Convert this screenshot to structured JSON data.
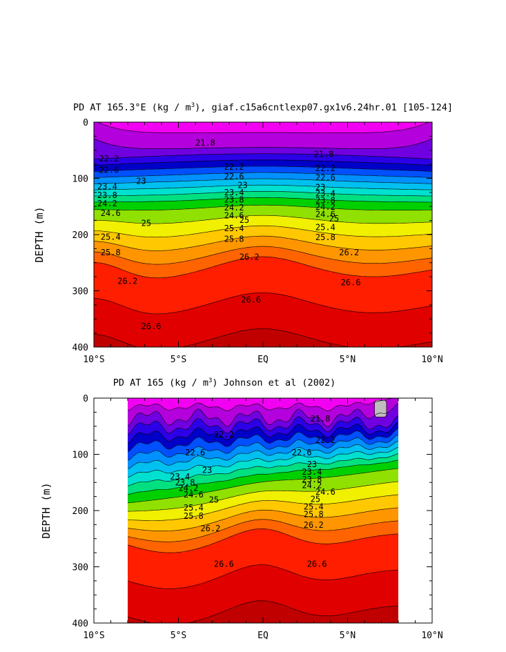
{
  "chart_data": [
    {
      "type": "contour",
      "title": "PD AT 165.3°E (kg / m³), giaf.c15a6cntlexp07.gx1v6.24hr.01 [105-124]",
      "title_parts": {
        "pre": "PD AT 165.3°E (kg / m",
        "sup": "3",
        "post": "), giaf.c15a6cntlexp07.gx1v6.24hr.01 [105-124]"
      },
      "ylabel": "DEPTH (m)",
      "x_ticks": [
        -10,
        -5,
        0,
        5,
        10
      ],
      "x_tick_labels": [
        "10°S",
        "5°S",
        "EQ",
        "5°N",
        "10°N"
      ],
      "y_ticks": [
        0,
        100,
        200,
        300,
        400
      ],
      "y_tick_labels": [
        "0",
        "100",
        "200",
        "300",
        "400"
      ],
      "xlim": [
        -10,
        10
      ],
      "ylim": [
        400,
        0
      ],
      "data_xlim": [
        -10,
        10
      ],
      "labeled_levels": [
        "21.8",
        "22.2",
        "22.6",
        "23",
        "23.4",
        "23.8",
        "24.2",
        "24.6",
        "25",
        "25.4",
        "25.8",
        "26.2",
        "26.6"
      ],
      "contour_labels": [
        {
          "text": "21.8",
          "x": -4.0,
          "y": 37
        },
        {
          "text": "21.8",
          "x": 3.0,
          "y": 57
        },
        {
          "text": "22.2",
          "x": -9.7,
          "y": 65
        },
        {
          "text": "22.2",
          "x": -2.3,
          "y": 80
        },
        {
          "text": "22.2",
          "x": 3.1,
          "y": 82
        },
        {
          "text": "22.6",
          "x": -9.7,
          "y": 85
        },
        {
          "text": "22.6",
          "x": -2.3,
          "y": 97
        },
        {
          "text": "22.6",
          "x": 3.1,
          "y": 99
        },
        {
          "text": "23",
          "x": -7.5,
          "y": 105
        },
        {
          "text": "23",
          "x": -1.5,
          "y": 112
        },
        {
          "text": "23",
          "x": 3.1,
          "y": 116
        },
        {
          "text": "23.4",
          "x": -9.8,
          "y": 115
        },
        {
          "text": "23.4",
          "x": -2.3,
          "y": 125
        },
        {
          "text": "23.4",
          "x": 3.1,
          "y": 127
        },
        {
          "text": "23.8",
          "x": -9.8,
          "y": 130
        },
        {
          "text": "23.8",
          "x": -2.3,
          "y": 138
        },
        {
          "text": "23.8",
          "x": 3.1,
          "y": 139
        },
        {
          "text": "24.2",
          "x": -9.8,
          "y": 145
        },
        {
          "text": "24.2",
          "x": -2.3,
          "y": 152
        },
        {
          "text": "24.2",
          "x": 3.1,
          "y": 151
        },
        {
          "text": "24.6",
          "x": -9.6,
          "y": 162
        },
        {
          "text": "24.6",
          "x": -2.3,
          "y": 166
        },
        {
          "text": "24.6",
          "x": 3.1,
          "y": 164
        },
        {
          "text": "25",
          "x": -7.2,
          "y": 180
        },
        {
          "text": "25",
          "x": -1.4,
          "y": 174
        },
        {
          "text": "25",
          "x": 3.9,
          "y": 172
        },
        {
          "text": "25.4",
          "x": -9.6,
          "y": 204
        },
        {
          "text": "25.4",
          "x": -2.3,
          "y": 189
        },
        {
          "text": "25.4",
          "x": 3.1,
          "y": 187
        },
        {
          "text": "25.8",
          "x": -9.6,
          "y": 232
        },
        {
          "text": "25.8",
          "x": -2.3,
          "y": 208
        },
        {
          "text": "25.8",
          "x": 3.1,
          "y": 205
        },
        {
          "text": "26.2",
          "x": -8.6,
          "y": 283
        },
        {
          "text": "26.2",
          "x": -1.4,
          "y": 240
        },
        {
          "text": "26.2",
          "x": 4.5,
          "y": 232
        },
        {
          "text": "26.6",
          "x": -1.3,
          "y": 316
        },
        {
          "text": "26.6",
          "x": 4.6,
          "y": 285
        },
        {
          "text": "26.6",
          "x": -7.2,
          "y": 363
        }
      ]
    },
    {
      "type": "contour",
      "title": "PD AT 165 (kg / m³) Johnson et al (2002)",
      "title_parts": {
        "pre": "PD AT 165 (kg / m",
        "sup": "3",
        "post": ") Johnson et al (2002)"
      },
      "ylabel": "DEPTH (m)",
      "x_ticks": [
        -10,
        -5,
        0,
        5,
        10
      ],
      "x_tick_labels": [
        "10°S",
        "5°S",
        "EQ",
        "5°N",
        "10°N"
      ],
      "y_ticks": [
        0,
        100,
        200,
        300,
        400
      ],
      "y_tick_labels": [
        "0",
        "100",
        "200",
        "300",
        "400"
      ],
      "xlim": [
        -10,
        10
      ],
      "ylim": [
        400,
        0
      ],
      "data_xlim": [
        -8,
        8
      ],
      "labeled_levels": [
        "21.8",
        "22.2",
        "22.6",
        "23",
        "23.4",
        "23.8",
        "24.2",
        "24.6",
        "25",
        "25.4",
        "25.8",
        "26.2",
        "26.6"
      ],
      "contour_labels": [
        {
          "text": "21.8",
          "x": 2.8,
          "y": 37
        },
        {
          "text": "22.2",
          "x": -2.9,
          "y": 65
        },
        {
          "text": "22.2",
          "x": 3.1,
          "y": 75
        },
        {
          "text": "22.6",
          "x": -4.6,
          "y": 97
        },
        {
          "text": "22.6",
          "x": 1.7,
          "y": 97
        },
        {
          "text": "23",
          "x": -3.6,
          "y": 128
        },
        {
          "text": "23",
          "x": 2.6,
          "y": 118
        },
        {
          "text": "23.4",
          "x": -5.5,
          "y": 140
        },
        {
          "text": "23.4",
          "x": 2.3,
          "y": 131
        },
        {
          "text": "23.8",
          "x": -5.2,
          "y": 150
        },
        {
          "text": "23.8",
          "x": 2.3,
          "y": 145
        },
        {
          "text": "24.2",
          "x": -5.0,
          "y": 160
        },
        {
          "text": "24.2",
          "x": 2.3,
          "y": 155
        },
        {
          "text": "24.6",
          "x": -4.7,
          "y": 172
        },
        {
          "text": "24.6",
          "x": 3.1,
          "y": 167
        },
        {
          "text": "25",
          "x": -3.2,
          "y": 181
        },
        {
          "text": "25",
          "x": 2.8,
          "y": 180
        },
        {
          "text": "25.4",
          "x": -4.7,
          "y": 195
        },
        {
          "text": "25.4",
          "x": 2.4,
          "y": 193
        },
        {
          "text": "25.8",
          "x": -4.7,
          "y": 210
        },
        {
          "text": "25.8",
          "x": 2.4,
          "y": 207
        },
        {
          "text": "26.2",
          "x": -3.7,
          "y": 232
        },
        {
          "text": "26.2",
          "x": 2.4,
          "y": 226
        },
        {
          "text": "26.6",
          "x": -2.9,
          "y": 295
        },
        {
          "text": "26.6",
          "x": 2.6,
          "y": 295
        }
      ],
      "missing_region": {
        "x": [
          6.6,
          7.3
        ],
        "y": [
          0,
          30
        ]
      }
    }
  ],
  "colors": {
    "levels": [
      "#f200f2",
      "#b400dc",
      "#7000e0",
      "#2c00e6",
      "#0000c8",
      "#0050ff",
      "#0090ff",
      "#00c0f0",
      "#00e0d0",
      "#00e080",
      "#00d000",
      "#90e000",
      "#f0f000",
      "#ffc800",
      "#ff9600",
      "#ff6400",
      "#ff1e00",
      "#e00000",
      "#c00000"
    ],
    "missing": "#bebebe",
    "contour": "#000000"
  }
}
